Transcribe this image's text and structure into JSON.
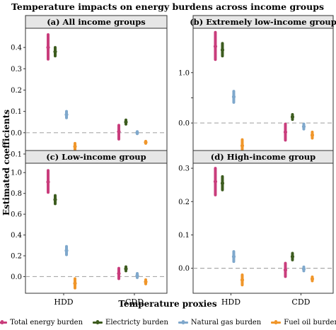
{
  "figure": {
    "title": "Temperature impacts on energy burdens across income groups",
    "xlabel": "Temperature proxies",
    "ylabel": "Estimated coefficients"
  },
  "colors": {
    "Total energy burden": "#c93d7c",
    "Electricty burden": "#3d5c1f",
    "Natural gas burden": "#7fa8cc",
    "Fuel oil burden": "#f0962a",
    "panel_header": "#e6e6e6",
    "zero_line": "#aaaaaa"
  },
  "legend": [
    {
      "label": "Total energy burden",
      "color": "#c93d7c"
    },
    {
      "label": "Electricty burden",
      "color": "#3d5c1f"
    },
    {
      "label": "Natural gas burden",
      "color": "#7fa8cc"
    },
    {
      "label": "Fuel oil burden",
      "color": "#f0962a"
    }
  ],
  "chart_data": [
    {
      "type": "scatter",
      "title": "(a) All income groups",
      "categories": [
        "HDD",
        "CDD"
      ],
      "ylim": [
        -0.12,
        0.49
      ],
      "yticks": [
        -0.1,
        0.0,
        0.1,
        0.2,
        0.3,
        0.4
      ],
      "ytick_labels": [
        "-0.1",
        "0.0",
        "0.1",
        "0.2",
        "0.3",
        "0.4"
      ],
      "series": [
        {
          "name": "Total energy burden",
          "values": [
            0.4,
            0.005
          ],
          "lower": [
            0.345,
            -0.03
          ],
          "upper": [
            0.46,
            0.035
          ]
        },
        {
          "name": "Electricty burden",
          "values": [
            0.38,
            0.05
          ],
          "lower": [
            0.36,
            0.04
          ],
          "upper": [
            0.4,
            0.06
          ]
        },
        {
          "name": "Natural gas burden",
          "values": [
            0.085,
            0.0
          ],
          "lower": [
            0.07,
            -0.005
          ],
          "upper": [
            0.1,
            0.005
          ]
        },
        {
          "name": "Fuel oil burden",
          "values": [
            -0.065,
            -0.045
          ],
          "lower": [
            -0.08,
            -0.05
          ],
          "upper": [
            -0.05,
            -0.04
          ]
        }
      ]
    },
    {
      "type": "scatter",
      "title": "(b) Extremely low-income group",
      "categories": [
        "HDD",
        "CDD"
      ],
      "ylim": [
        -0.7,
        1.88
      ],
      "yticks": [
        0.0,
        0.5,
        1.0
      ],
      "ytick_labels": [
        "0.0",
        "",
        "1.0"
      ],
      "series": [
        {
          "name": "Total energy burden",
          "values": [
            1.52,
            -0.18
          ],
          "lower": [
            1.26,
            -0.34
          ],
          "upper": [
            1.8,
            -0.02
          ]
        },
        {
          "name": "Electricty burden",
          "values": [
            1.45,
            0.12
          ],
          "lower": [
            1.33,
            0.07
          ],
          "upper": [
            1.58,
            0.17
          ]
        },
        {
          "name": "Natural gas burden",
          "values": [
            0.52,
            -0.07
          ],
          "lower": [
            0.41,
            -0.12
          ],
          "upper": [
            0.63,
            -0.02
          ]
        },
        {
          "name": "Fuel oil burden",
          "values": [
            -0.45,
            -0.24
          ],
          "lower": [
            -0.57,
            -0.3
          ],
          "upper": [
            -0.33,
            -0.18
          ]
        }
      ]
    },
    {
      "type": "scatter",
      "title": "(c) Low-income group",
      "categories": [
        "HDD",
        "CDD"
      ],
      "ylim": [
        -0.16,
        1.09
      ],
      "yticks": [
        0.0,
        0.2,
        0.4,
        0.6,
        0.8,
        1.0
      ],
      "ytick_labels": [
        "0.0",
        "0.2",
        "0.4",
        "0.6",
        "0.8",
        "1.0"
      ],
      "series": [
        {
          "name": "Total energy burden",
          "values": [
            0.91,
            0.03
          ],
          "lower": [
            0.81,
            -0.02
          ],
          "upper": [
            1.02,
            0.08
          ]
        },
        {
          "name": "Electricty burden",
          "values": [
            0.74,
            0.075
          ],
          "lower": [
            0.7,
            0.055
          ],
          "upper": [
            0.78,
            0.095
          ]
        },
        {
          "name": "Natural gas burden",
          "values": [
            0.25,
            0.01
          ],
          "lower": [
            0.21,
            -0.01
          ],
          "upper": [
            0.29,
            0.03
          ]
        },
        {
          "name": "Fuel oil burden",
          "values": [
            -0.065,
            -0.05
          ],
          "lower": [
            -0.11,
            -0.07
          ],
          "upper": [
            -0.02,
            -0.03
          ]
        }
      ]
    },
    {
      "type": "scatter",
      "title": "(d) High-income group",
      "categories": [
        "HDD",
        "CDD"
      ],
      "ylim": [
        -0.075,
        0.315
      ],
      "yticks": [
        0.0,
        0.1,
        0.2,
        0.3
      ],
      "ytick_labels": [
        "0.0",
        "0.1",
        "0.2",
        "0.3"
      ],
      "series": [
        {
          "name": "Total energy burden",
          "values": [
            0.26,
            -0.005
          ],
          "lower": [
            0.22,
            -0.025
          ],
          "upper": [
            0.3,
            0.015
          ]
        },
        {
          "name": "Electricty burden",
          "values": [
            0.255,
            0.035
          ],
          "lower": [
            0.235,
            0.025
          ],
          "upper": [
            0.275,
            0.045
          ]
        },
        {
          "name": "Natural gas burden",
          "values": [
            0.035,
            -0.002
          ],
          "lower": [
            0.02,
            -0.008
          ],
          "upper": [
            0.05,
            0.004
          ]
        },
        {
          "name": "Fuel oil burden",
          "values": [
            -0.035,
            -0.032
          ],
          "lower": [
            -0.05,
            -0.038
          ],
          "upper": [
            -0.02,
            -0.026
          ]
        }
      ]
    }
  ]
}
